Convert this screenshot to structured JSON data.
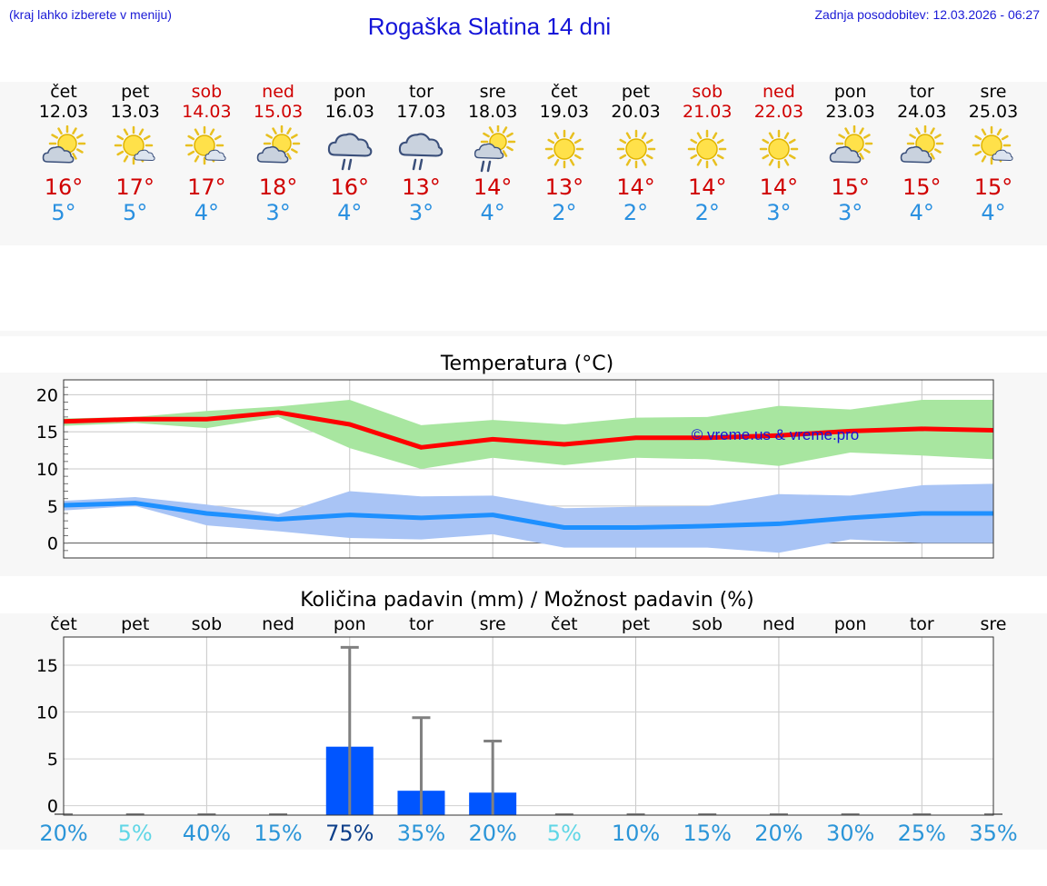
{
  "header": {
    "left_note": "(kraj lahko izberete v meniju)",
    "title": "Rogaška Slatina 14 dni",
    "right_note": "Zadnja posodobitev: 12.03.2026 - 06:27"
  },
  "days": [
    {
      "name": "čet",
      "date": "12.03",
      "weekend": false,
      "icon": "sun-cloud-icon",
      "max": "16°",
      "min": "5°"
    },
    {
      "name": "pet",
      "date": "13.03",
      "weekend": false,
      "icon": "sun-small-cloud-icon",
      "max": "17°",
      "min": "5°"
    },
    {
      "name": "sob",
      "date": "14.03",
      "weekend": true,
      "icon": "sun-small-cloud-icon",
      "max": "17°",
      "min": "4°"
    },
    {
      "name": "ned",
      "date": "15.03",
      "weekend": true,
      "icon": "sun-cloud-icon",
      "max": "18°",
      "min": "3°"
    },
    {
      "name": "pon",
      "date": "16.03",
      "weekend": false,
      "icon": "cloud-rain-icon",
      "max": "16°",
      "min": "4°"
    },
    {
      "name": "tor",
      "date": "17.03",
      "weekend": false,
      "icon": "cloud-rain-icon",
      "max": "13°",
      "min": "3°"
    },
    {
      "name": "sre",
      "date": "18.03",
      "weekend": false,
      "icon": "sun-rain-icon",
      "max": "14°",
      "min": "4°"
    },
    {
      "name": "čet",
      "date": "19.03",
      "weekend": false,
      "icon": "sun-icon",
      "max": "13°",
      "min": "2°"
    },
    {
      "name": "pet",
      "date": "20.03",
      "weekend": false,
      "icon": "sun-icon",
      "max": "14°",
      "min": "2°"
    },
    {
      "name": "sob",
      "date": "21.03",
      "weekend": true,
      "icon": "sun-icon",
      "max": "14°",
      "min": "2°"
    },
    {
      "name": "ned",
      "date": "22.03",
      "weekend": true,
      "icon": "sun-icon",
      "max": "14°",
      "min": "3°"
    },
    {
      "name": "pon",
      "date": "23.03",
      "weekend": false,
      "icon": "sun-cloud-icon",
      "max": "15°",
      "min": "3°"
    },
    {
      "name": "tor",
      "date": "24.03",
      "weekend": false,
      "icon": "sun-cloud-icon",
      "max": "15°",
      "min": "4°"
    },
    {
      "name": "sre",
      "date": "25.03",
      "weekend": false,
      "icon": "sun-small-cloud-icon",
      "max": "15°",
      "min": "4°"
    }
  ],
  "colors": {
    "max_line": "#ff0000",
    "max_band": "#a8e6a0",
    "min_line": "#1e90ff",
    "min_band": "#a9c4f5",
    "bar": "#0055ff",
    "whisker": "#808080",
    "prob_high": "#0d3f8a",
    "prob_mid": "#2b95d8",
    "prob_low": "#5fd6e6"
  },
  "chart_data": [
    {
      "type": "line",
      "title": "Temperatura (°C)",
      "watermark": "© vreme.us & vreme.pro",
      "ylim": [
        -2,
        22
      ],
      "yticks": [
        "0",
        "5",
        "10",
        "15",
        "20"
      ],
      "x_points": 14,
      "series": [
        {
          "name": "max",
          "values": [
            16.4,
            16.7,
            16.7,
            17.6,
            16.0,
            12.9,
            14.0,
            13.3,
            14.2,
            14.2,
            14.5,
            15.1,
            15.4,
            15.2
          ],
          "band_low": [
            15.8,
            16.2,
            15.5,
            17.0,
            12.8,
            10.0,
            11.5,
            10.5,
            11.5,
            11.3,
            10.4,
            12.2,
            11.8,
            11.3
          ],
          "band_high": [
            16.8,
            17.0,
            17.8,
            18.4,
            19.3,
            15.9,
            16.6,
            16.0,
            16.9,
            17.0,
            18.5,
            18.0,
            19.3,
            19.3
          ]
        },
        {
          "name": "min",
          "values": [
            5.1,
            5.4,
            4.0,
            3.2,
            3.8,
            3.4,
            3.8,
            2.1,
            2.1,
            2.3,
            2.6,
            3.4,
            4.0,
            4.0
          ],
          "band_low": [
            4.4,
            5.0,
            2.4,
            1.6,
            0.7,
            0.5,
            1.2,
            -0.6,
            -0.6,
            -0.6,
            -1.3,
            0.5,
            0.0,
            0.0
          ],
          "band_high": [
            5.7,
            6.2,
            5.2,
            3.9,
            7.0,
            6.3,
            6.4,
            4.7,
            4.9,
            5.0,
            6.6,
            6.4,
            7.8,
            8.0
          ]
        }
      ]
    },
    {
      "type": "bar",
      "title": "Količina padavin (mm) / Možnost padavin (%)",
      "categories": [
        "čet",
        "pet",
        "sob",
        "ned",
        "pon",
        "tor",
        "sre",
        "čet",
        "pet",
        "sob",
        "ned",
        "pon",
        "tor",
        "sre"
      ],
      "values": [
        0,
        0,
        0,
        0,
        6.3,
        1.6,
        1.4,
        0,
        0,
        0,
        0,
        0,
        0,
        0
      ],
      "whisker_high": [
        0,
        0,
        0,
        0,
        16.9,
        9.4,
        6.9,
        0,
        0,
        0,
        0,
        0,
        0,
        0
      ],
      "ylim": [
        -1,
        18
      ],
      "yticks": [
        "0",
        "5",
        "10",
        "15"
      ],
      "probability": [
        "20%",
        "5%",
        "40%",
        "15%",
        "75%",
        "35%",
        "20%",
        "5%",
        "10%",
        "15%",
        "20%",
        "30%",
        "25%",
        "35%"
      ]
    }
  ]
}
